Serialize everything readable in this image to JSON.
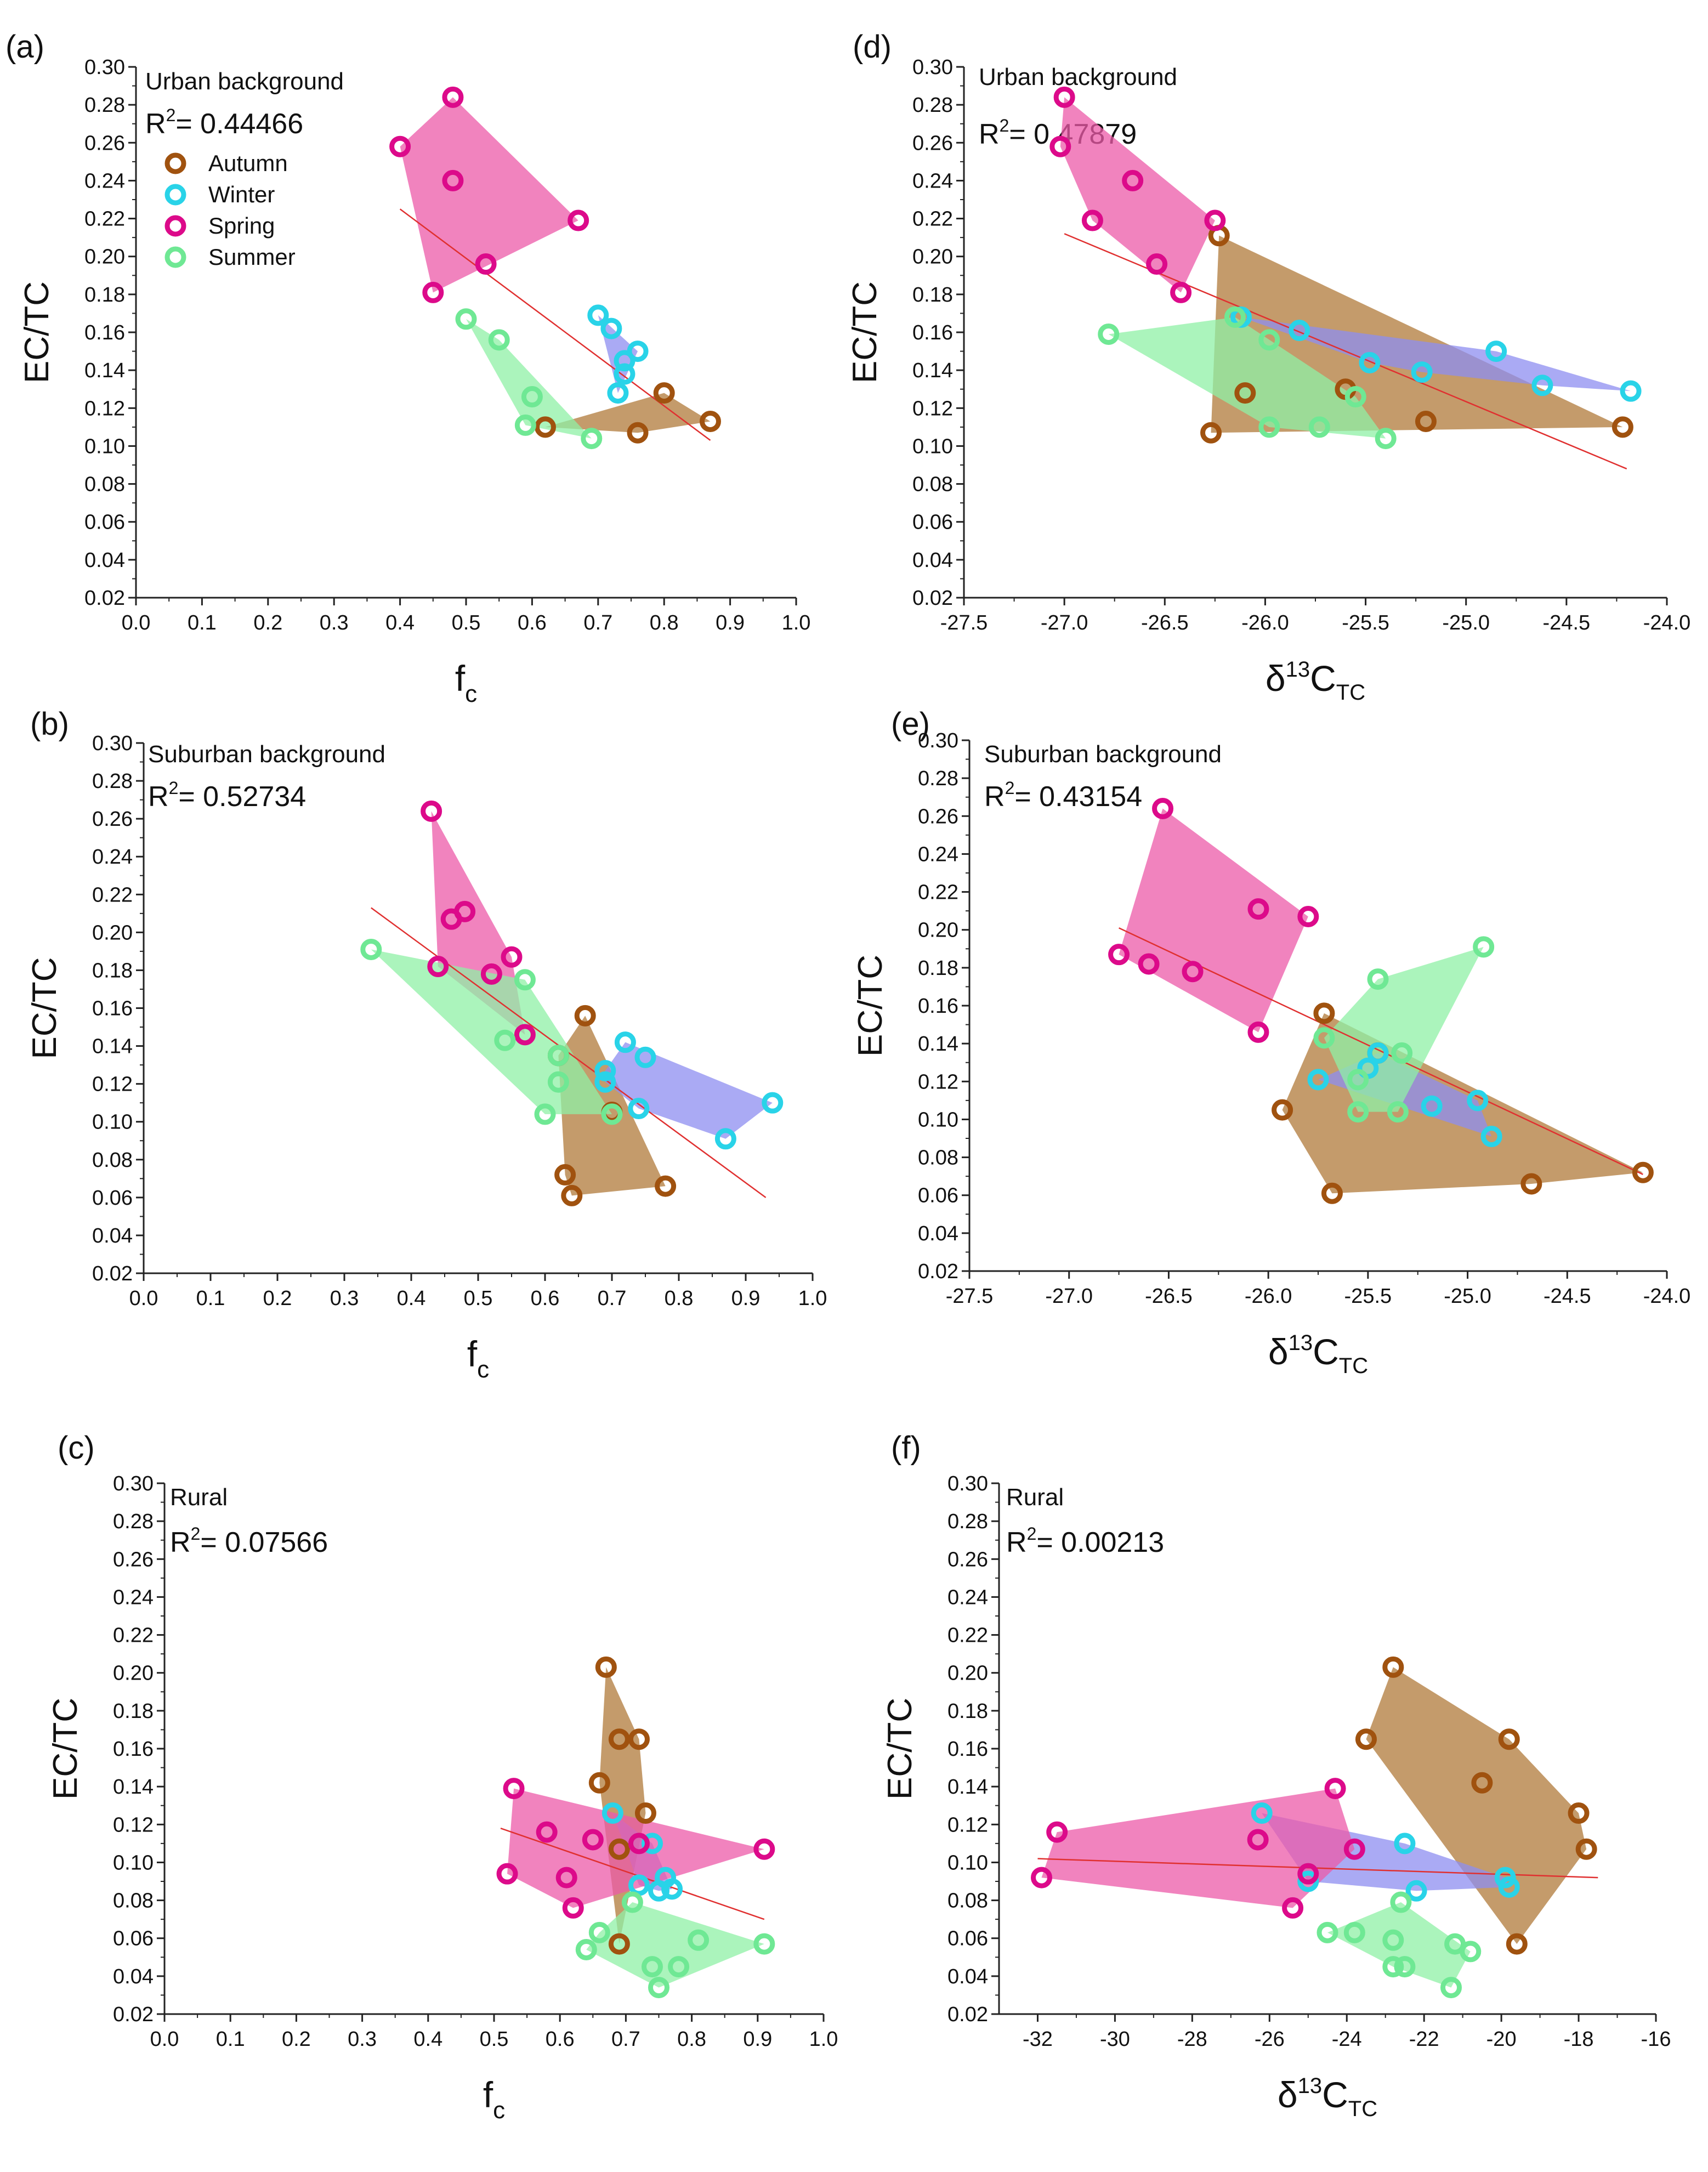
{
  "colors": {
    "Autumn": "#a0520f",
    "Winter": "#29d3e8",
    "Spring": "#dc0a8a",
    "Summer": "#6fe894",
    "fit_line": "#e03030",
    "fill_Autumn": "#b07a3a",
    "fill_Winter": "#8e8ef0",
    "fill_Spring": "#ec5aa8",
    "fill_Summer": "#8ff0a6"
  },
  "legend": {
    "items": [
      {
        "season": "Autumn",
        "label": "Autumn"
      },
      {
        "season": "Winter",
        "label": "Winter"
      },
      {
        "season": "Spring",
        "label": "Spring"
      },
      {
        "season": "Summer",
        "label": "Summer"
      }
    ]
  },
  "chart_data": [
    {
      "id": "a",
      "panel_label": "(a)",
      "type": "scatter",
      "site": "Urban background",
      "r2_text": "= 0.44466",
      "xlabel": "f",
      "xlabel_sub": "c",
      "xlabel_sup": "",
      "ylabel": "EC/TC",
      "xlim": [
        0.0,
        1.0
      ],
      "ylim": [
        0.02,
        0.3
      ],
      "xticks": [
        0.0,
        0.1,
        0.2,
        0.3,
        0.4,
        0.5,
        0.6,
        0.7,
        0.8,
        0.9,
        1.0
      ],
      "xtick_labels": [
        "0.0",
        "0.1",
        "0.2",
        "0.3",
        "0.4",
        "0.5",
        "0.6",
        "0.7",
        "0.8",
        "0.9",
        "1.0"
      ],
      "yticks": [
        0.02,
        0.04,
        0.06,
        0.08,
        0.1,
        0.12,
        0.14,
        0.16,
        0.18,
        0.2,
        0.22,
        0.24,
        0.26,
        0.28,
        0.3
      ],
      "ytick_labels": [
        "0.02",
        "0.04",
        "0.06",
        "0.08",
        "0.10",
        "0.12",
        "0.14",
        "0.16",
        "0.18",
        "0.20",
        "0.22",
        "0.24",
        "0.26",
        "0.28",
        "0.30"
      ],
      "show_legend": true,
      "fit": {
        "x": [
          0.4,
          0.87
        ],
        "y": [
          0.225,
          0.103
        ]
      },
      "series": [
        {
          "name": "Autumn",
          "x": [
            0.62,
            0.76,
            0.8,
            0.87
          ],
          "y": [
            0.11,
            0.107,
            0.128,
            0.113
          ]
        },
        {
          "name": "Winter",
          "x": [
            0.7,
            0.72,
            0.74,
            0.76,
            0.74,
            0.73
          ],
          "y": [
            0.169,
            0.162,
            0.145,
            0.15,
            0.138,
            0.128
          ]
        },
        {
          "name": "Spring",
          "x": [
            0.4,
            0.48,
            0.48,
            0.53,
            0.45,
            0.67
          ],
          "y": [
            0.258,
            0.284,
            0.24,
            0.196,
            0.181,
            0.219
          ]
        },
        {
          "name": "Summer",
          "x": [
            0.5,
            0.55,
            0.6,
            0.59,
            0.69
          ],
          "y": [
            0.167,
            0.156,
            0.126,
            0.111,
            0.104
          ]
        }
      ]
    },
    {
      "id": "b",
      "panel_label": "(b)",
      "type": "scatter",
      "site": "Suburban background",
      "r2_text": "= 0.52734",
      "xlabel": "f",
      "xlabel_sub": "c",
      "xlabel_sup": "",
      "ylabel": "EC/TC",
      "xlim": [
        0.0,
        1.0
      ],
      "ylim": [
        0.02,
        0.3
      ],
      "xticks": [
        0.0,
        0.1,
        0.2,
        0.3,
        0.4,
        0.5,
        0.6,
        0.7,
        0.8,
        0.9,
        1.0
      ],
      "xtick_labels": [
        "0.0",
        "0.1",
        "0.2",
        "0.3",
        "0.4",
        "0.5",
        "0.6",
        "0.7",
        "0.8",
        "0.9",
        "1.0"
      ],
      "yticks": [
        0.02,
        0.04,
        0.06,
        0.08,
        0.1,
        0.12,
        0.14,
        0.16,
        0.18,
        0.2,
        0.22,
        0.24,
        0.26,
        0.28,
        0.3
      ],
      "ytick_labels": [
        "0.02",
        "0.04",
        "0.06",
        "0.08",
        "0.10",
        "0.12",
        "0.14",
        "0.16",
        "0.18",
        "0.20",
        "0.22",
        "0.24",
        "0.26",
        "0.28",
        "0.30"
      ],
      "show_legend": false,
      "fit": {
        "x": [
          0.34,
          0.93
        ],
        "y": [
          0.213,
          0.06
        ]
      },
      "series": [
        {
          "name": "Autumn",
          "x": [
            0.66,
            0.62,
            0.7,
            0.63,
            0.64,
            0.78
          ],
          "y": [
            0.156,
            0.135,
            0.105,
            0.072,
            0.061,
            0.066
          ]
        },
        {
          "name": "Winter",
          "x": [
            0.72,
            0.75,
            0.94,
            0.87,
            0.74,
            0.69,
            0.69
          ],
          "y": [
            0.142,
            0.134,
            0.11,
            0.091,
            0.107,
            0.127,
            0.121
          ]
        },
        {
          "name": "Spring",
          "x": [
            0.43,
            0.46,
            0.48,
            0.55,
            0.44,
            0.52,
            0.57
          ],
          "y": [
            0.264,
            0.207,
            0.211,
            0.187,
            0.182,
            0.178,
            0.146
          ]
        },
        {
          "name": "Summer",
          "x": [
            0.34,
            0.57,
            0.54,
            0.62,
            0.62,
            0.6,
            0.7
          ],
          "y": [
            0.191,
            0.175,
            0.143,
            0.135,
            0.121,
            0.104,
            0.104
          ]
        }
      ]
    },
    {
      "id": "c",
      "panel_label": "(c)",
      "type": "scatter",
      "site": "Rural",
      "r2_text": "= 0.07566",
      "xlabel": "f",
      "xlabel_sub": "c",
      "xlabel_sup": "",
      "ylabel": "EC/TC",
      "xlim": [
        0.0,
        1.0
      ],
      "ylim": [
        0.02,
        0.3
      ],
      "xticks": [
        0.0,
        0.1,
        0.2,
        0.3,
        0.4,
        0.5,
        0.6,
        0.7,
        0.8,
        0.9,
        1.0
      ],
      "xtick_labels": [
        "0.0",
        "0.1",
        "0.2",
        "0.3",
        "0.4",
        "0.5",
        "0.6",
        "0.7",
        "0.8",
        "0.9",
        "1.0"
      ],
      "yticks": [
        0.02,
        0.04,
        0.06,
        0.08,
        0.1,
        0.12,
        0.14,
        0.16,
        0.18,
        0.2,
        0.22,
        0.24,
        0.26,
        0.28,
        0.3
      ],
      "ytick_labels": [
        "0.02",
        "0.04",
        "0.06",
        "0.08",
        "0.10",
        "0.12",
        "0.14",
        "0.16",
        "0.18",
        "0.20",
        "0.22",
        "0.24",
        "0.26",
        "0.28",
        "0.30"
      ],
      "show_legend": false,
      "fit": {
        "x": [
          0.51,
          0.91
        ],
        "y": [
          0.118,
          0.07
        ]
      },
      "series": [
        {
          "name": "Autumn",
          "x": [
            0.67,
            0.69,
            0.72,
            0.66,
            0.73,
            0.69,
            0.69
          ],
          "y": [
            0.203,
            0.165,
            0.165,
            0.142,
            0.126,
            0.107,
            0.057
          ]
        },
        {
          "name": "Winter",
          "x": [
            0.68,
            0.74,
            0.76,
            0.77,
            0.75,
            0.72
          ],
          "y": [
            0.126,
            0.11,
            0.092,
            0.086,
            0.085,
            0.088
          ]
        },
        {
          "name": "Spring",
          "x": [
            0.53,
            0.58,
            0.65,
            0.52,
            0.61,
            0.62,
            0.91,
            0.72
          ],
          "y": [
            0.139,
            0.116,
            0.112,
            0.094,
            0.092,
            0.076,
            0.107,
            0.11
          ]
        },
        {
          "name": "Summer",
          "x": [
            0.71,
            0.66,
            0.64,
            0.81,
            0.91,
            0.74,
            0.78,
            0.75
          ],
          "y": [
            0.079,
            0.063,
            0.054,
            0.059,
            0.057,
            0.045,
            0.045,
            0.034
          ]
        }
      ]
    },
    {
      "id": "d",
      "panel_label": "(d)",
      "type": "scatter",
      "site": "Urban background",
      "r2_text": "= 0.47879",
      "xlabel": "δ",
      "xlabel_sup": "13",
      "xlabel_main": "C",
      "xlabel_sub": "TC",
      "ylabel": "EC/TC",
      "xlim": [
        -27.5,
        -24.0
      ],
      "ylim": [
        0.02,
        0.3
      ],
      "xticks": [
        -27.5,
        -27.0,
        -26.5,
        -26.0,
        -25.5,
        -25.0,
        -24.5,
        -24.0
      ],
      "xtick_labels": [
        "-27.5",
        "-27.0",
        "-26.5",
        "-26.0",
        "-25.5",
        "-25.0",
        "-24.5",
        "-24.0"
      ],
      "yticks": [
        0.02,
        0.04,
        0.06,
        0.08,
        0.1,
        0.12,
        0.14,
        0.16,
        0.18,
        0.2,
        0.22,
        0.24,
        0.26,
        0.28,
        0.3
      ],
      "ytick_labels": [
        "0.02",
        "0.04",
        "0.06",
        "0.08",
        "0.10",
        "0.12",
        "0.14",
        "0.16",
        "0.18",
        "0.20",
        "0.22",
        "0.24",
        "0.26",
        "0.28",
        "0.30"
      ],
      "show_legend": false,
      "fit": {
        "x": [
          -27.0,
          -24.2
        ],
        "y": [
          0.212,
          0.088
        ]
      },
      "series": [
        {
          "name": "Autumn",
          "x": [
            -26.23,
            -26.1,
            -25.6,
            -25.2,
            -26.27,
            -24.22
          ],
          "y": [
            0.211,
            0.128,
            0.13,
            0.113,
            0.107,
            0.11
          ]
        },
        {
          "name": "Winter",
          "x": [
            -26.12,
            -25.83,
            -25.48,
            -25.22,
            -24.85,
            -24.62,
            -24.18
          ],
          "y": [
            0.168,
            0.161,
            0.144,
            0.139,
            0.15,
            0.132,
            0.129
          ]
        },
        {
          "name": "Spring",
          "x": [
            -27.0,
            -27.02,
            -26.66,
            -26.86,
            -26.54,
            -26.42,
            -26.25
          ],
          "y": [
            0.284,
            0.258,
            0.24,
            0.219,
            0.196,
            0.181,
            0.219
          ]
        },
        {
          "name": "Summer",
          "x": [
            -26.78,
            -26.15,
            -25.98,
            -25.98,
            -25.73,
            -25.55,
            -25.4
          ],
          "y": [
            0.159,
            0.168,
            0.156,
            0.11,
            0.11,
            0.126,
            0.104
          ]
        }
      ]
    },
    {
      "id": "e",
      "panel_label": "(e)",
      "type": "scatter",
      "site": "Suburban background",
      "r2_text": "= 0.43154",
      "xlabel": "δ",
      "xlabel_sup": "13",
      "xlabel_main": "C",
      "xlabel_sub": "TC",
      "ylabel": "EC/TC",
      "xlim": [
        -27.5,
        -24.0
      ],
      "ylim": [
        0.02,
        0.3
      ],
      "xticks": [
        -27.5,
        -27.0,
        -26.5,
        -26.0,
        -25.5,
        -25.0,
        -24.5,
        -24.0
      ],
      "xtick_labels": [
        "-27.5",
        "-27.0",
        "-26.5",
        "-26.0",
        "-25.5",
        "-25.0",
        "-24.5",
        "-24.0"
      ],
      "yticks": [
        0.02,
        0.04,
        0.06,
        0.08,
        0.1,
        0.12,
        0.14,
        0.16,
        0.18,
        0.2,
        0.22,
        0.24,
        0.26,
        0.28,
        0.3
      ],
      "ytick_labels": [
        "0.02",
        "0.04",
        "0.06",
        "0.08",
        "0.10",
        "0.12",
        "0.14",
        "0.16",
        "0.18",
        "0.20",
        "0.22",
        "0.24",
        "0.26",
        "0.28",
        "0.30"
      ],
      "show_legend": false,
      "fit": {
        "x": [
          -26.75,
          -24.12
        ],
        "y": [
          0.201,
          0.071
        ]
      },
      "series": [
        {
          "name": "Autumn",
          "x": [
            -25.72,
            -25.45,
            -25.93,
            -25.68,
            -24.68,
            -24.12
          ],
          "y": [
            0.156,
            0.135,
            0.105,
            0.061,
            0.066,
            0.072
          ]
        },
        {
          "name": "Winter",
          "x": [
            -25.75,
            -25.45,
            -25.5,
            -25.18,
            -24.95,
            -24.88
          ],
          "y": [
            0.121,
            0.135,
            0.127,
            0.107,
            0.11,
            0.091
          ]
        },
        {
          "name": "Spring",
          "x": [
            -26.53,
            -26.05,
            -25.8,
            -26.75,
            -26.6,
            -26.38,
            -26.05
          ],
          "y": [
            0.264,
            0.211,
            0.207,
            0.187,
            0.182,
            0.178,
            0.146
          ]
        },
        {
          "name": "Summer",
          "x": [
            -25.45,
            -24.92,
            -25.72,
            -25.55,
            -25.33,
            -25.55,
            -25.35
          ],
          "y": [
            0.174,
            0.191,
            0.143,
            0.121,
            0.135,
            0.104,
            0.104
          ]
        }
      ]
    },
    {
      "id": "f",
      "panel_label": "(f)",
      "type": "scatter",
      "site": "Rural",
      "r2_text": "= 0.00213",
      "xlabel": "δ",
      "xlabel_sup": "13",
      "xlabel_main": "C",
      "xlabel_sub": "TC",
      "ylabel": "EC/TC",
      "xlim": [
        -33,
        -16
      ],
      "ylim": [
        0.02,
        0.3
      ],
      "xticks": [
        -32,
        -30,
        -28,
        -26,
        -24,
        -22,
        -20,
        -18,
        -16
      ],
      "xtick_labels": [
        "-32",
        "-30",
        "-28",
        "-26",
        "-24",
        "-22",
        "-20",
        "-18",
        "-16"
      ],
      "yticks": [
        0.02,
        0.04,
        0.06,
        0.08,
        0.1,
        0.12,
        0.14,
        0.16,
        0.18,
        0.2,
        0.22,
        0.24,
        0.26,
        0.28,
        0.3
      ],
      "ytick_labels": [
        "0.02",
        "0.04",
        "0.06",
        "0.08",
        "0.10",
        "0.12",
        "0.14",
        "0.16",
        "0.18",
        "0.20",
        "0.22",
        "0.24",
        "0.26",
        "0.28",
        "0.30"
      ],
      "show_legend": false,
      "fit": {
        "x": [
          -32.0,
          -17.5
        ],
        "y": [
          0.102,
          0.092
        ]
      },
      "series": [
        {
          "name": "Autumn",
          "x": [
            -22.8,
            -23.5,
            -19.8,
            -20.5,
            -18.0,
            -17.8,
            -19.6
          ],
          "y": [
            0.203,
            0.165,
            0.165,
            0.142,
            0.126,
            0.107,
            0.057
          ]
        },
        {
          "name": "Winter",
          "x": [
            -26.2,
            -22.5,
            -22.2,
            -19.9,
            -19.8,
            -25.0
          ],
          "y": [
            0.126,
            0.11,
            0.085,
            0.092,
            0.087,
            0.09
          ]
        },
        {
          "name": "Spring",
          "x": [
            -31.5,
            -26.3,
            -24.3,
            -23.8,
            -31.9,
            -25.0,
            -25.4
          ],
          "y": [
            0.116,
            0.112,
            0.139,
            0.107,
            0.092,
            0.094,
            0.076
          ]
        },
        {
          "name": "Summer",
          "x": [
            -22.6,
            -24.5,
            -23.8,
            -22.8,
            -22.8,
            -22.5,
            -21.2,
            -20.8,
            -21.3
          ],
          "y": [
            0.079,
            0.063,
            0.063,
            0.059,
            0.045,
            0.045,
            0.057,
            0.053,
            0.034
          ]
        }
      ]
    }
  ]
}
